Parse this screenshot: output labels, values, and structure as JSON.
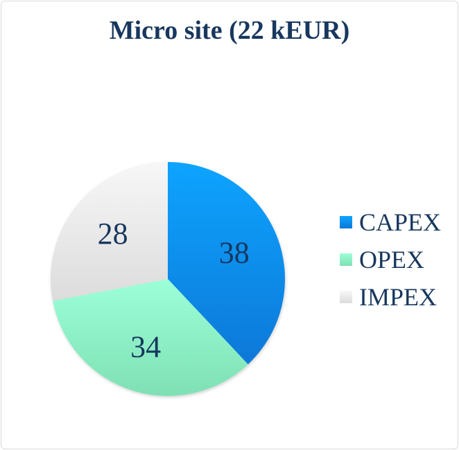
{
  "chart_data": {
    "type": "pie",
    "title": "Micro site (22 kEUR)",
    "categories": [
      "CAPEX",
      "OPEX",
      "IMPEX"
    ],
    "values": [
      38,
      34,
      28
    ],
    "data_labels": [
      "38",
      "34",
      "28"
    ],
    "colors": [
      "#1e90f0",
      "#8ff0c8",
      "#e6e6e6"
    ],
    "legend_position": "right",
    "start_angle": "12 o'clock, clockwise"
  }
}
